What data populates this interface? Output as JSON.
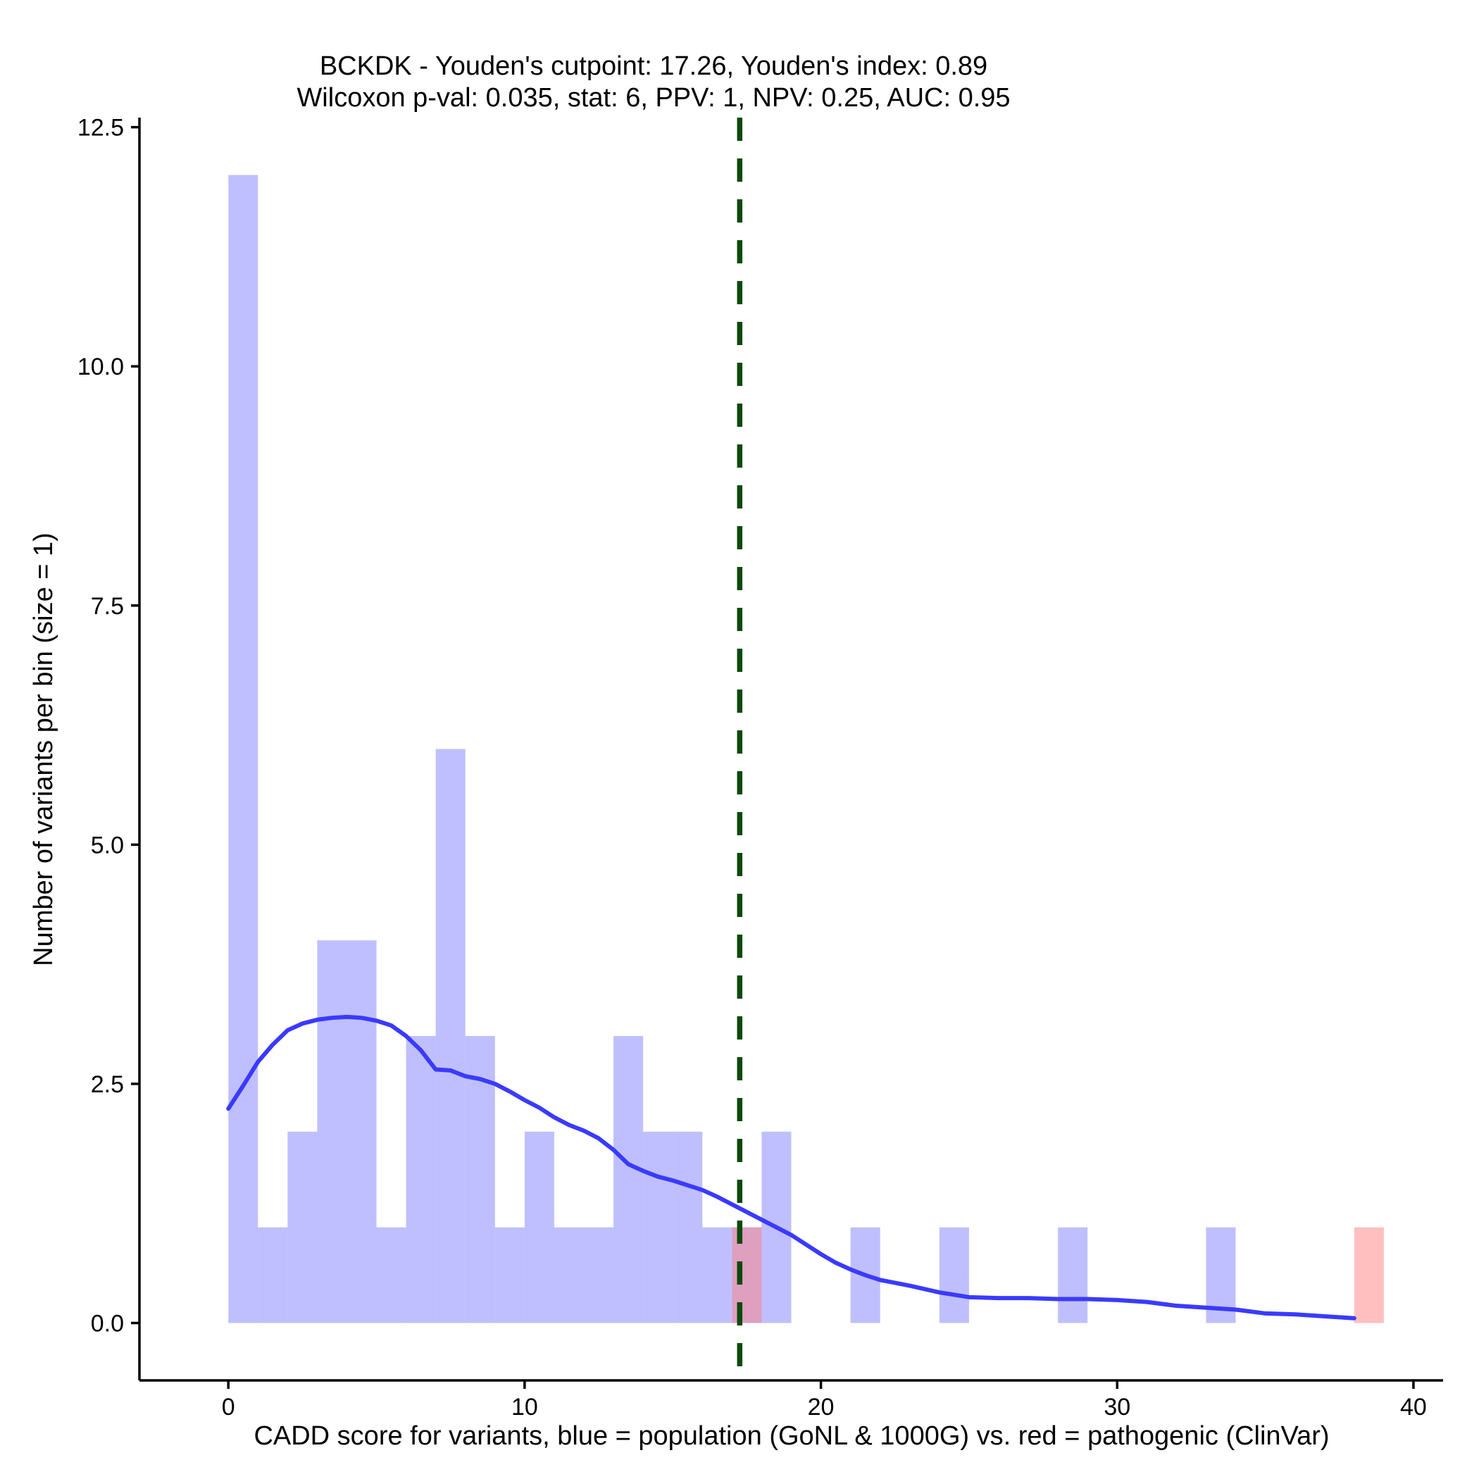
{
  "chart_data": {
    "type": "bar",
    "title_lines": [
      "BCKDK - Youden's cutpoint: 17.26, Youden's index: 0.89",
      "Wilcoxon p-val: 0.035, stat: 6, PPV: 1, NPV: 0.25, AUC: 0.95"
    ],
    "xlabel": "CADD score for variants, blue = population (GoNL & 1000G) vs. red = pathogenic (ClinVar)",
    "ylabel": "Number of variants per bin (size = 1)",
    "xlim": [
      -3,
      41
    ],
    "ylim": [
      -0.6,
      12.6
    ],
    "x_ticks": [
      0,
      10,
      20,
      30,
      40
    ],
    "x_tick_labels": [
      "0",
      "10",
      "20",
      "30",
      "40"
    ],
    "y_ticks": [
      0,
      2.5,
      5,
      7.5,
      10,
      12.5
    ],
    "y_tick_labels": [
      "0.0",
      "2.5",
      "5.0",
      "7.5",
      "10.0",
      "12.5"
    ],
    "bin_width": 1,
    "cutpoint": 17.26,
    "cutpoint_color": "#0b4a0b",
    "series": [
      {
        "color": "#8080ff",
        "opacity": 0.5,
        "bins": [
          {
            "start": 0,
            "count": 12
          },
          {
            "start": 1,
            "count": 1
          },
          {
            "start": 2,
            "count": 2
          },
          {
            "start": 3,
            "count": 4
          },
          {
            "start": 4,
            "count": 4
          },
          {
            "start": 5,
            "count": 1
          },
          {
            "start": 6,
            "count": 3
          },
          {
            "start": 7,
            "count": 6
          },
          {
            "start": 8,
            "count": 3
          },
          {
            "start": 9,
            "count": 1
          },
          {
            "start": 10,
            "count": 2
          },
          {
            "start": 11,
            "count": 1
          },
          {
            "start": 12,
            "count": 1
          },
          {
            "start": 13,
            "count": 3
          },
          {
            "start": 14,
            "count": 2
          },
          {
            "start": 15,
            "count": 2
          },
          {
            "start": 16,
            "count": 1
          },
          {
            "start": 17,
            "count": 1
          },
          {
            "start": 18,
            "count": 2
          },
          {
            "start": 21,
            "count": 1
          },
          {
            "start": 24,
            "count": 1
          },
          {
            "start": 28,
            "count": 1
          },
          {
            "start": 33,
            "count": 1
          }
        ]
      },
      {
        "color": "#ff8080",
        "opacity": 0.5,
        "bins": [
          {
            "start": 17,
            "count": 1
          },
          {
            "start": 38,
            "count": 1
          }
        ]
      }
    ],
    "density_curve": {
      "color": "#3a3aff",
      "x": [
        0,
        0.5,
        1,
        1.5,
        2,
        2.5,
        3,
        3.5,
        4,
        4.5,
        5,
        5.5,
        6,
        6.5,
        7,
        7.5,
        8,
        8.5,
        9,
        9.5,
        10,
        10.5,
        11,
        11.5,
        12,
        12.5,
        13,
        13.5,
        14,
        14.5,
        15,
        15.5,
        16,
        16.5,
        17,
        17.5,
        18,
        18.5,
        19,
        19.5,
        20,
        20.5,
        21,
        21.5,
        22,
        23,
        24,
        25,
        26,
        27,
        28,
        29,
        30,
        31,
        32,
        33,
        34,
        35,
        36,
        37,
        38
      ],
      "y": [
        2.24,
        2.48,
        2.73,
        2.91,
        3.06,
        3.13,
        3.17,
        3.19,
        3.2,
        3.19,
        3.16,
        3.11,
        3.0,
        2.85,
        2.65,
        2.64,
        2.58,
        2.55,
        2.5,
        2.42,
        2.33,
        2.25,
        2.15,
        2.07,
        2.01,
        1.93,
        1.81,
        1.66,
        1.59,
        1.53,
        1.49,
        1.44,
        1.39,
        1.32,
        1.24,
        1.16,
        1.08,
        1.0,
        0.92,
        0.82,
        0.72,
        0.63,
        0.56,
        0.5,
        0.45,
        0.39,
        0.32,
        0.27,
        0.26,
        0.26,
        0.25,
        0.25,
        0.24,
        0.22,
        0.18,
        0.16,
        0.14,
        0.1,
        0.09,
        0.07,
        0.05
      ]
    }
  }
}
